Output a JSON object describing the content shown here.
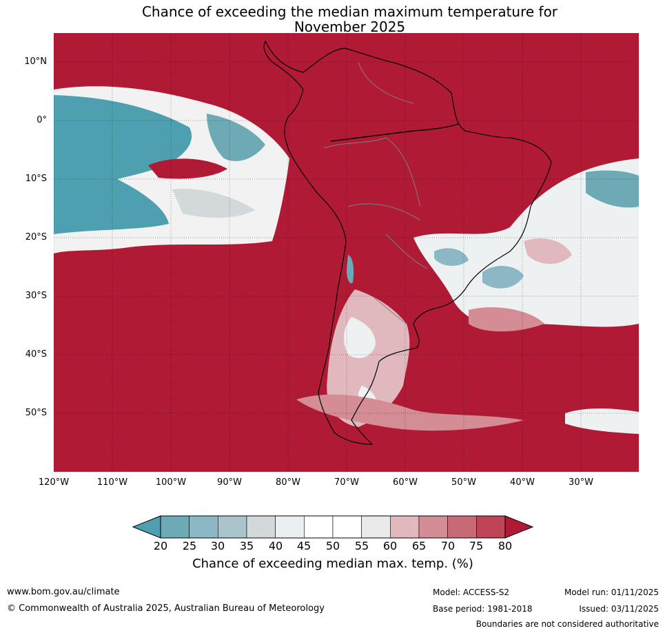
{
  "title": {
    "line1": "Chance of exceeding the median maximum temperature for",
    "line2": "November 2025"
  },
  "map": {
    "region": "South America and adjacent oceans",
    "lat_labels": [
      "10°N",
      "0°",
      "10°S",
      "20°S",
      "30°S",
      "40°S",
      "50°S"
    ],
    "lon_labels": [
      "120°W",
      "110°W",
      "100°W",
      "90°W",
      "80°W",
      "70°W",
      "60°W",
      "50°W",
      "40°W",
      "30°W"
    ],
    "dominant_color": "#b01a35",
    "low_color": "#4ea0b1"
  },
  "colorbar": {
    "ticks": [
      "20",
      "25",
      "30",
      "35",
      "40",
      "45",
      "50",
      "55",
      "60",
      "65",
      "70",
      "75",
      "80"
    ],
    "colors": [
      "#6daab5",
      "#8cb8c5",
      "#aac4cb",
      "#d3d8da",
      "#eaf0f2",
      "#ffffff",
      "#ffffff",
      "#ebeaeb",
      "#e0b8bd",
      "#d48c95",
      "#c86a75",
      "#bf4455"
    ],
    "under_color": "#4ea0b1",
    "over_color": "#b01a35",
    "label": "Chance of exceeding median max. temp. (%)"
  },
  "footer": {
    "website": "www.bom.gov.au/climate",
    "copyright": "© Commonwealth of Australia 2025, Australian Bureau of Meteorology",
    "model": "Model: ACCESS-S2",
    "base_period": "Base period: 1981-2018",
    "model_run": "Model run: 01/11/2025",
    "issued": "Issued: 03/11/2025",
    "disclaimer": "Boundaries are not considered authoritative"
  }
}
